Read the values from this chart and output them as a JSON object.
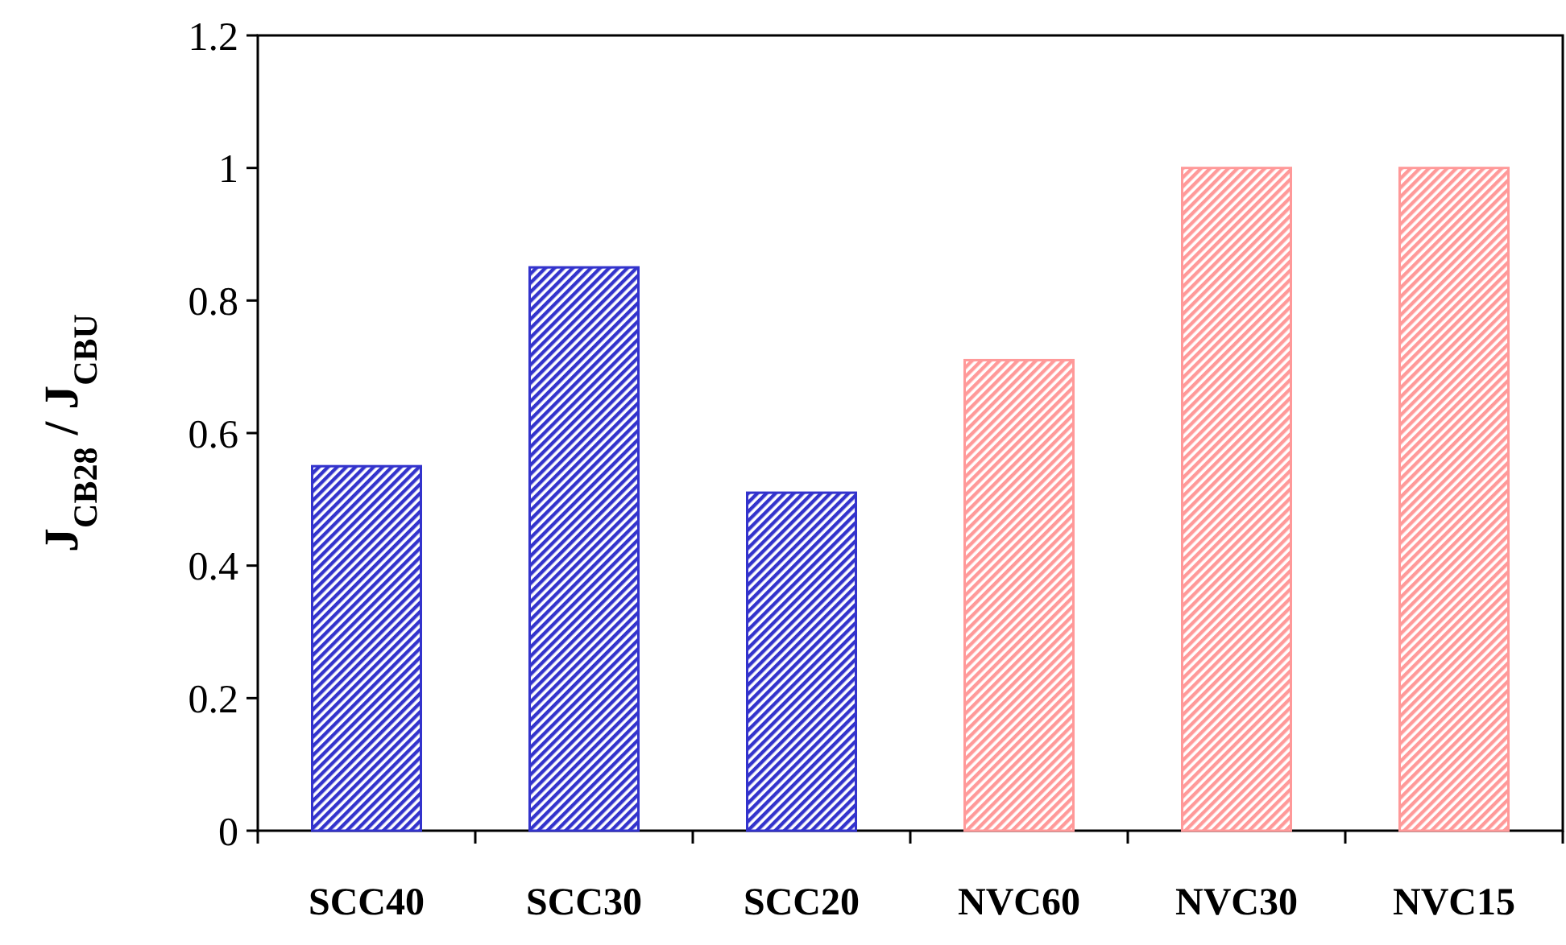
{
  "chart_data": {
    "type": "bar",
    "ylabel": "J$_{CB28}$ / J$_{CBU}$",
    "categories": [
      "SCC40",
      "SCC30",
      "SCC20",
      "NVC60",
      "NVC30",
      "NVC15"
    ],
    "values": [
      0.55,
      0.85,
      0.51,
      0.71,
      1.0,
      1.0
    ],
    "colors": [
      "#3333cc",
      "#3333cc",
      "#3333cc",
      "#ff9999",
      "#ff9999",
      "#ff9999"
    ],
    "ylim": [
      0,
      1.2
    ],
    "yticks": [
      0,
      {
        "value": 0.2,
        "label": "0.2"
      },
      {
        "value": 0.4,
        "label": "0.4"
      },
      {
        "value": 0.6,
        "label": "0.6"
      },
      {
        "value": 0.8,
        "label": "0.8"
      },
      1,
      {
        "value": 1.2,
        "label": "1.2"
      }
    ],
    "grid": false
  }
}
